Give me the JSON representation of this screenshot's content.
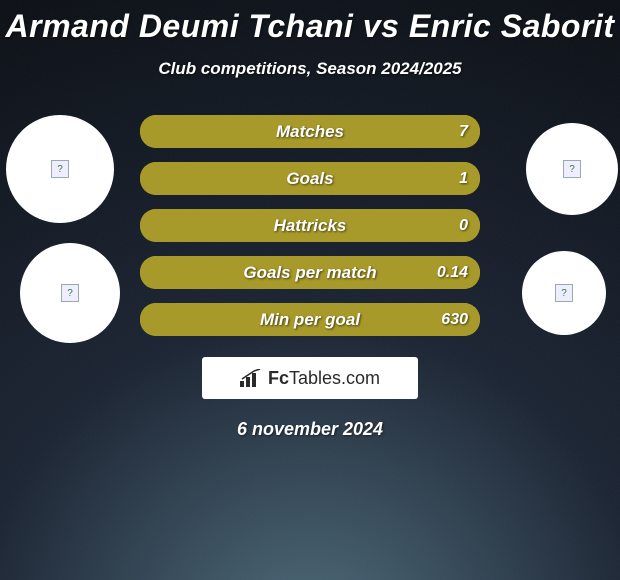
{
  "background": {
    "color_top": "#0a0e14",
    "color_mid": "#1a2332",
    "color_bottom": "#4d6b7a",
    "noise_opacity": 0.25
  },
  "title": "Armand Deumi Tchani vs Enric Saborit",
  "subtitle": "Club competitions, Season 2024/2025",
  "avatars": {
    "placeholder_glyph": "?"
  },
  "bars": {
    "base_color": "#a89a2a",
    "fill_color": "#a89a2a",
    "height": 33,
    "radius": 16,
    "label_fontsize": 17,
    "value_fontsize": 16,
    "text_color": "#ffffff",
    "items": [
      {
        "label": "Matches",
        "left_value": "",
        "right_value": "7",
        "left_pct": 0,
        "right_pct": 100
      },
      {
        "label": "Goals",
        "left_value": "",
        "right_value": "1",
        "left_pct": 0,
        "right_pct": 100
      },
      {
        "label": "Hattricks",
        "left_value": "",
        "right_value": "0",
        "left_pct": 0,
        "right_pct": 100
      },
      {
        "label": "Goals per match",
        "left_value": "",
        "right_value": "0.14",
        "left_pct": 0,
        "right_pct": 100
      },
      {
        "label": "Min per goal",
        "left_value": "",
        "right_value": "630",
        "left_pct": 0,
        "right_pct": 100
      }
    ]
  },
  "logo": {
    "prefix": "Fc",
    "suffix": "Tables.com",
    "box_bg": "#ffffff",
    "text_color": "#2a2a2a"
  },
  "date": "6 november 2024"
}
